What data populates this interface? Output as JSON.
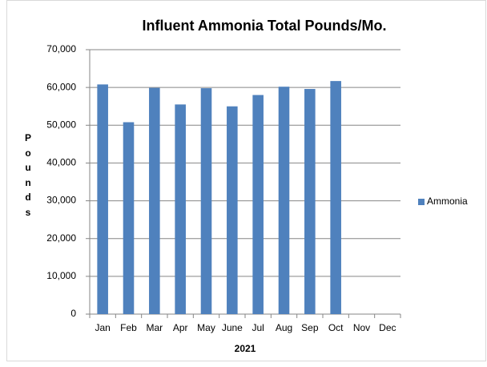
{
  "chart_data": {
    "type": "bar",
    "title": "Influent Ammonia Total Pounds/Mo.",
    "y_label": "Pounds",
    "x_label": "2021",
    "categories": [
      "Jan",
      "Feb",
      "Mar",
      "Apr",
      "May",
      "June",
      "Jul",
      "Aug",
      "Sep",
      "Oct",
      "Nov",
      "Dec"
    ],
    "series": [
      {
        "name": "Ammonia",
        "color": "#4f81bd",
        "values": [
          60800,
          50800,
          59900,
          55500,
          59800,
          55000,
          58000,
          60200,
          59600,
          61700,
          null,
          null
        ]
      }
    ],
    "ylim": [
      0,
      70000
    ],
    "yticks": [
      0,
      {
        "value": 10000,
        "label": "10,000"
      },
      {
        "value": 20000,
        "label": "20,000"
      },
      {
        "value": 30000,
        "label": "30,000"
      },
      {
        "value": 40000,
        "label": "40,000"
      },
      {
        "value": 50000,
        "label": "50,000"
      },
      {
        "value": 60000,
        "label": "60,000"
      },
      {
        "value": 70000,
        "label": "70,000"
      }
    ],
    "grid": true,
    "legend": "right"
  }
}
